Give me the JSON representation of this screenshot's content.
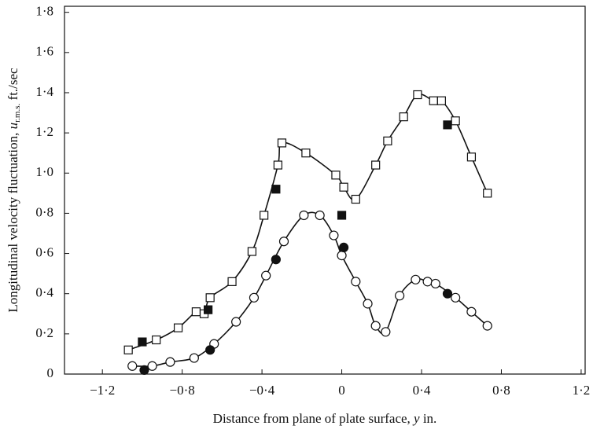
{
  "chart_data": {
    "type": "scatter",
    "xlabel": {
      "text": "Distance from plane of plate surface, ",
      "var": "y",
      "unit": " in."
    },
    "ylabel": {
      "text": "Longitudinal velocity fluctuation, ",
      "var": "u",
      "sub": "r.m.s.",
      "unit": " ft./sec"
    },
    "xlim": [
      -1.39,
      1.22
    ],
    "ylim": [
      0,
      1.83
    ],
    "xticks": [
      {
        "value": -1.2,
        "label": "−1·2"
      },
      {
        "value": -0.8,
        "label": "−0·8"
      },
      {
        "value": -0.4,
        "label": "−0·4"
      },
      0,
      {
        "value": 0.4,
        "label": "0·4"
      },
      {
        "value": 0.8,
        "label": "0·8"
      },
      {
        "value": 1.2,
        "label": "1·2"
      }
    ],
    "yticks": [
      0,
      {
        "value": 0.2,
        "label": "0·2"
      },
      {
        "value": 0.4,
        "label": "0·4"
      },
      {
        "value": 0.6,
        "label": "0·6"
      },
      {
        "value": 0.8,
        "label": "0·8"
      },
      {
        "value": 1.0,
        "label": "1·0"
      },
      {
        "value": 1.2,
        "label": "1·2"
      },
      {
        "value": 1.4,
        "label": "1·4"
      },
      {
        "value": 1.6,
        "label": "1·6"
      },
      {
        "value": 1.8,
        "label": "1·8"
      }
    ],
    "series": [
      {
        "marker": "square",
        "filled": false,
        "curve": true,
        "color": "#111111",
        "x": [
          -1.07,
          -0.93,
          -0.82,
          -0.73,
          -0.69,
          -0.66,
          -0.55,
          -0.45,
          -0.39,
          -0.32,
          -0.3,
          -0.18,
          -0.03,
          0.01,
          0.07,
          0.17,
          0.23,
          0.31,
          0.38,
          0.46,
          0.5,
          0.57,
          0.65,
          0.73
        ],
        "values": [
          0.12,
          0.17,
          0.23,
          0.31,
          0.3,
          0.38,
          0.46,
          0.61,
          0.79,
          1.04,
          1.15,
          1.1,
          0.99,
          0.93,
          0.87,
          1.04,
          1.16,
          1.28,
          1.39,
          1.36,
          1.36,
          1.26,
          1.08,
          0.9
        ]
      },
      {
        "marker": "square",
        "filled": true,
        "curve": false,
        "color": "#111111",
        "x": [
          -1.0,
          -0.67,
          -0.33,
          0.0,
          0.53
        ],
        "values": [
          0.16,
          0.32,
          0.92,
          0.79,
          1.24
        ]
      },
      {
        "marker": "circle",
        "filled": false,
        "curve": true,
        "color": "#111111",
        "x": [
          -1.05,
          -0.95,
          -0.86,
          -0.74,
          -0.64,
          -0.53,
          -0.44,
          -0.38,
          -0.29,
          -0.19,
          -0.11,
          -0.04,
          0.0,
          0.07,
          0.13,
          0.17,
          0.22,
          0.29,
          0.37,
          0.43,
          0.47,
          0.57,
          0.65,
          0.73
        ],
        "values": [
          0.04,
          0.04,
          0.06,
          0.08,
          0.15,
          0.26,
          0.38,
          0.49,
          0.66,
          0.79,
          0.79,
          0.69,
          0.59,
          0.46,
          0.35,
          0.24,
          0.21,
          0.39,
          0.47,
          0.46,
          0.45,
          0.38,
          0.31,
          0.24
        ]
      },
      {
        "marker": "circle",
        "filled": true,
        "curve": false,
        "color": "#111111",
        "x": [
          -0.99,
          -0.66,
          -0.33,
          0.01,
          0.53
        ],
        "values": [
          0.02,
          0.12,
          0.57,
          0.63,
          0.4
        ]
      }
    ]
  }
}
